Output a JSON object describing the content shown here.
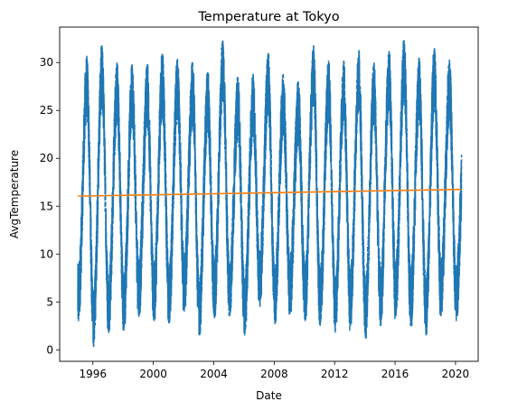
{
  "chart_data": {
    "type": "line",
    "title": "Temperature at Tokyo",
    "xlabel": "Date",
    "ylabel": "AvgTemperature",
    "x_ticks": [
      "1996",
      "2000",
      "2004",
      "2008",
      "2012",
      "2016",
      "2020"
    ],
    "x_tick_years": [
      1996,
      2000,
      2004,
      2008,
      2012,
      2016,
      2020
    ],
    "y_ticks": [
      0,
      5,
      10,
      15,
      20,
      25,
      30
    ],
    "xlim": [
      1993.8,
      2021.5
    ],
    "ylim": [
      -1.2,
      33.7
    ],
    "grid": false,
    "legend": "none",
    "series": [
      {
        "color": "#1f77b4",
        "style": "dashed",
        "x_range": [
          1995.0,
          2020.4
        ],
        "annual_pattern": {
          "min_month": "January",
          "max_month": "August",
          "typical_min": 4,
          "typical_max": 29
        },
        "yearly_extremes": [
          {
            "year": 1995,
            "min": 3.0,
            "max": 30.7
          },
          {
            "year": 1996,
            "min": 0.3,
            "max": 31.8
          },
          {
            "year": 1997,
            "min": 1.8,
            "max": 30.0
          },
          {
            "year": 1998,
            "min": 2.0,
            "max": 29.8
          },
          {
            "year": 1999,
            "min": 3.5,
            "max": 29.8
          },
          {
            "year": 2000,
            "min": 3.0,
            "max": 30.9
          },
          {
            "year": 2001,
            "min": 2.8,
            "max": 30.4
          },
          {
            "year": 2002,
            "min": 4.0,
            "max": 30.0
          },
          {
            "year": 2003,
            "min": 1.5,
            "max": 29.0
          },
          {
            "year": 2004,
            "min": 3.3,
            "max": 32.3
          },
          {
            "year": 2005,
            "min": 3.5,
            "max": 28.5
          },
          {
            "year": 2006,
            "min": 1.5,
            "max": 28.8
          },
          {
            "year": 2007,
            "min": 4.5,
            "max": 31.0
          },
          {
            "year": 2008,
            "min": 2.7,
            "max": 28.8
          },
          {
            "year": 2009,
            "min": 3.8,
            "max": 28.0
          },
          {
            "year": 2010,
            "min": 3.0,
            "max": 31.8
          },
          {
            "year": 2011,
            "min": 2.5,
            "max": 30.2
          },
          {
            "year": 2012,
            "min": 1.8,
            "max": 30.2
          },
          {
            "year": 2013,
            "min": 2.5,
            "max": 31.3
          },
          {
            "year": 2014,
            "min": 1.2,
            "max": 30.0
          },
          {
            "year": 2015,
            "min": 2.5,
            "max": 31.2
          },
          {
            "year": 2016,
            "min": 3.5,
            "max": 32.3
          },
          {
            "year": 2017,
            "min": 2.5,
            "max": 30.5
          },
          {
            "year": 2018,
            "min": 1.5,
            "max": 31.5
          },
          {
            "year": 2019,
            "min": 3.5,
            "max": 30.3
          },
          {
            "year": 2020,
            "min": 3.0,
            "max": 25.7
          }
        ]
      },
      {
        "color": "#ff7f0e",
        "style": "solid",
        "kind": "trend",
        "x": [
          1995.0,
          2020.4
        ],
        "y": [
          16.05,
          16.75
        ]
      }
    ]
  }
}
